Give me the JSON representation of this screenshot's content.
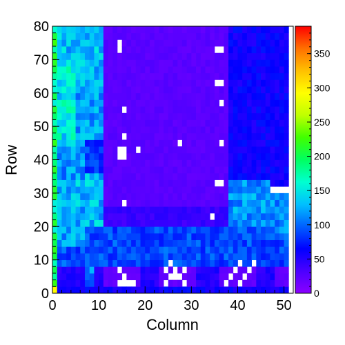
{
  "chart_data": {
    "type": "heatmap",
    "title": "",
    "xlabel": "Column",
    "ylabel": "Row",
    "xlim": [
      0,
      52
    ],
    "ylim": [
      0,
      80
    ],
    "x_ticks": [
      "0",
      "10",
      "20",
      "30",
      "40",
      "50"
    ],
    "y_ticks": [
      "0",
      "10",
      "20",
      "30",
      "40",
      "50",
      "60",
      "70",
      "80"
    ],
    "colorbar": {
      "min": 0,
      "max": 390,
      "ticks": [
        "0",
        "50",
        "100",
        "150",
        "200",
        "250",
        "300",
        "350"
      ]
    },
    "colormap": [
      "#8b00ff",
      "#4b00ff",
      "#0000ff",
      "#0060ff",
      "#00c0ff",
      "#00ffd0",
      "#00ff60",
      "#40ff00",
      "#c0ff00",
      "#ffff00",
      "#ffc000",
      "#ff7000",
      "#ff0000"
    ],
    "cell_size": [
      1,
      2
    ],
    "regions": [
      {
        "x": [
          0,
          1
        ],
        "y": [
          0,
          80
        ],
        "value": 190
      },
      {
        "x": [
          1,
          11
        ],
        "y": [
          26,
          80
        ],
        "value": 130
      },
      {
        "x": [
          1,
          5
        ],
        "y": [
          42,
          70
        ],
        "value": 150
      },
      {
        "x": [
          5,
          11
        ],
        "y": [
          44,
          62
        ],
        "value": 120
      },
      {
        "x": [
          11,
          38
        ],
        "y": [
          26,
          80
        ],
        "value": 25
      },
      {
        "x": [
          38,
          51
        ],
        "y": [
          32,
          80
        ],
        "value": 60
      },
      {
        "x": [
          1,
          7
        ],
        "y": [
          34,
          44
        ],
        "value": 115
      },
      {
        "x": [
          7,
          11
        ],
        "y": [
          36,
          46
        ],
        "value": 85
      },
      {
        "x": [
          1,
          51
        ],
        "y": [
          0,
          26
        ],
        "value": 90
      },
      {
        "x": [
          1,
          7
        ],
        "y": [
          14,
          26
        ],
        "value": 120
      },
      {
        "x": [
          7,
          11
        ],
        "y": [
          20,
          26
        ],
        "value": 130
      },
      {
        "x": [
          38,
          47
        ],
        "y": [
          20,
          34
        ],
        "value": 115
      },
      {
        "x": [
          47,
          51
        ],
        "y": [
          16,
          30
        ],
        "value": 110
      },
      {
        "x": [
          11,
          38
        ],
        "y": [
          20,
          26
        ],
        "value": 40
      },
      {
        "x": [
          1,
          51
        ],
        "y": [
          2,
          8
        ],
        "value": 50
      },
      {
        "x": [
          11,
          19
        ],
        "y": [
          2,
          8
        ],
        "value": 20
      },
      {
        "x": [
          23,
          31
        ],
        "y": [
          2,
          8
        ],
        "value": 20
      },
      {
        "x": [
          36,
          44
        ],
        "y": [
          2,
          8
        ],
        "value": 20
      },
      {
        "x": [
          7,
          9
        ],
        "y": [
          2,
          8
        ],
        "value": 110
      },
      {
        "x": [
          48,
          51
        ],
        "y": [
          2,
          8
        ],
        "value": 20
      },
      {
        "x": [
          0,
          1
        ],
        "y": [
          0,
          2
        ],
        "value": 250
      },
      {
        "x": [
          1,
          51
        ],
        "y": [
          0,
          2
        ],
        "value": 60
      }
    ],
    "empty_cells": [
      [
        14,
        72
      ],
      [
        14,
        74
      ],
      [
        35,
        72
      ],
      [
        36,
        72
      ],
      [
        35,
        62
      ],
      [
        36,
        62
      ],
      [
        36,
        56
      ],
      [
        15,
        54
      ],
      [
        15,
        46
      ],
      [
        27,
        44
      ],
      [
        36,
        44
      ],
      [
        14,
        40
      ],
      [
        15,
        40
      ],
      [
        14,
        42
      ],
      [
        15,
        42
      ],
      [
        18,
        42
      ],
      [
        35,
        32
      ],
      [
        36,
        32
      ],
      [
        15,
        26
      ],
      [
        34,
        22
      ],
      [
        14,
        2
      ],
      [
        15,
        2
      ],
      [
        16,
        2
      ],
      [
        17,
        2
      ],
      [
        15,
        4
      ],
      [
        14,
        6
      ],
      [
        24,
        2
      ],
      [
        28,
        2
      ],
      [
        25,
        4
      ],
      [
        26,
        4
      ],
      [
        27,
        4
      ],
      [
        26,
        6
      ],
      [
        24,
        6
      ],
      [
        28,
        6
      ],
      [
        25,
        8
      ],
      [
        37,
        2
      ],
      [
        40,
        2
      ],
      [
        38,
        4
      ],
      [
        41,
        4
      ],
      [
        39,
        6
      ],
      [
        42,
        6
      ],
      [
        43,
        8
      ],
      [
        40,
        8
      ]
    ]
  }
}
